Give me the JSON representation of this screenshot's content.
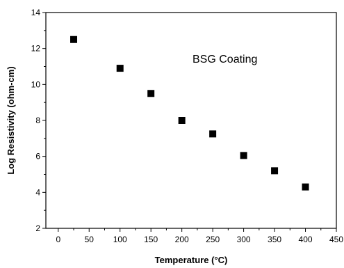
{
  "chart_data": {
    "type": "scatter",
    "title": "",
    "annotation": "BSG Coating",
    "xlabel": "Temperature (°C)",
    "ylabel": "Log Resistivity (ohm-cm)",
    "xlim": [
      -20,
      450
    ],
    "ylim": [
      2,
      14
    ],
    "xticks": [
      0,
      50,
      100,
      150,
      200,
      250,
      300,
      350,
      400,
      450
    ],
    "yticks": [
      2,
      4,
      6,
      8,
      10,
      12,
      14
    ],
    "grid": false,
    "legend": "none",
    "marker": "filled-square",
    "color": "#000000",
    "series": [
      {
        "x": [
          25,
          100,
          150,
          200,
          250,
          300,
          350,
          400
        ],
        "y": [
          12.5,
          10.9,
          9.5,
          8.0,
          7.25,
          6.05,
          5.2,
          4.3
        ]
      }
    ]
  }
}
